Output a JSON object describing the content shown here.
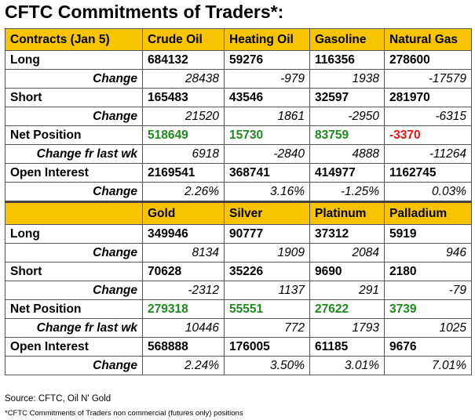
{
  "title": "CFTC Commitments of Traders*:",
  "energy": {
    "header": [
      "Contracts (Jan 5)",
      "Crude Oil",
      "Heating Oil",
      "Gasoline",
      "Natural Gas"
    ],
    "long": {
      "label": "Long",
      "values": [
        "684132",
        "59276",
        "116356",
        "278600"
      ]
    },
    "long_change": {
      "label": "Change",
      "values": [
        "28438",
        "-979",
        "1938",
        "-17579"
      ]
    },
    "short": {
      "label": "Short",
      "values": [
        "165483",
        "43546",
        "32597",
        "281970"
      ]
    },
    "short_change": {
      "label": "Change",
      "values": [
        "21520",
        "1861",
        "-2950",
        "-6315"
      ]
    },
    "net": {
      "label": "Net Position",
      "values": [
        "518649",
        "15730",
        "83759",
        "-3370"
      ]
    },
    "net_change": {
      "label": "Change fr last wk",
      "values": [
        "6918",
        "-2840",
        "4888",
        "-11264"
      ]
    },
    "oi": {
      "label": "Open Interest",
      "values": [
        "2169541",
        "368741",
        "414977",
        "1162745"
      ]
    },
    "oi_change": {
      "label": "Change",
      "values": [
        "2.26%",
        "3.16%",
        "-1.25%",
        "0.03%"
      ]
    }
  },
  "metals": {
    "header": [
      "",
      "Gold",
      "Silver",
      "Platinum",
      "Palladium"
    ],
    "long": {
      "label": "Long",
      "values": [
        "349946",
        "90777",
        "37312",
        "5919"
      ]
    },
    "long_change": {
      "label": "Change",
      "values": [
        "8134",
        "1909",
        "2084",
        "946"
      ]
    },
    "short": {
      "label": "Short",
      "values": [
        "70628",
        "35226",
        "9690",
        "2180"
      ]
    },
    "short_change": {
      "label": "Change",
      "values": [
        "-2312",
        "1137",
        "291",
        "-79"
      ]
    },
    "net": {
      "label": "Net Position",
      "values": [
        "279318",
        "55551",
        "27622",
        "3739"
      ]
    },
    "net_change": {
      "label": "Change fr last wk",
      "values": [
        "10446",
        "772",
        "1793",
        "1025"
      ]
    },
    "oi": {
      "label": "Open Interest",
      "values": [
        "568888",
        "176005",
        "61185",
        "9676"
      ]
    },
    "oi_change": {
      "label": "Change",
      "values": [
        "2.24%",
        "3.50%",
        "3.01%",
        "7.01%"
      ]
    }
  },
  "colors": {
    "header_bg": "#f8c400",
    "positive_net": "#1e8a1e",
    "negative_net": "#ee1111"
  },
  "source": "Source: CFTC, Oil N' Gold",
  "footnote": "*CFTC Commitments of Traders non commercial (futures only) positions"
}
